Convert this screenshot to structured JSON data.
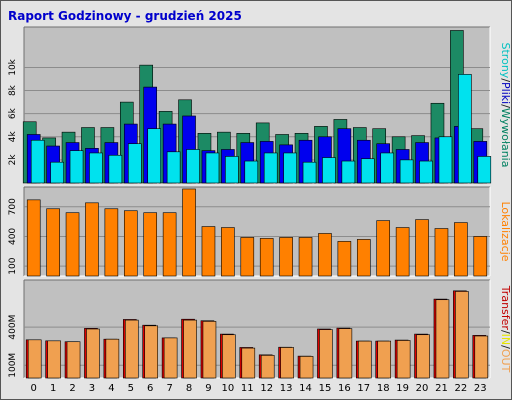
{
  "chart_data": {
    "type": "bar",
    "title": "Raport Godzinowy -  grudzień 2025",
    "categories": [
      "0",
      "1",
      "2",
      "3",
      "4",
      "5",
      "6",
      "7",
      "8",
      "9",
      "10",
      "11",
      "12",
      "13",
      "14",
      "15",
      "16",
      "17",
      "18",
      "19",
      "20",
      "21",
      "22",
      "23"
    ],
    "panels": [
      {
        "id": "top",
        "ylim": [
          0,
          13500
        ],
        "yticks": [
          {
            "value": 2000,
            "label": "2k"
          },
          {
            "value": 4000,
            "label": "4k"
          },
          {
            "value": 6000,
            "label": "6k"
          },
          {
            "value": 8000,
            "label": "8k"
          },
          {
            "value": 10000,
            "label": "10k"
          }
        ],
        "side_label": [
          {
            "text": "Strony",
            "color": "#00c0c0"
          },
          {
            "text": "/",
            "color": "#202020"
          },
          {
            "text": "Pliki",
            "color": "#0000c0"
          },
          {
            "text": "/",
            "color": "#202020"
          },
          {
            "text": "Wywołania",
            "color": "#008060"
          }
        ],
        "series": [
          {
            "color": "#1c8a64",
            "values": [
              5300,
              3900,
              4400,
              4800,
              4800,
              7000,
              10200,
              6200,
              7200,
              4300,
              4400,
              4300,
              5200,
              4200,
              4300,
              4900,
              5500,
              4800,
              4700,
              4000,
              4100,
              6900,
              13200,
              4700
            ]
          },
          {
            "color": "#0000ee",
            "values": [
              4200,
              3200,
              3500,
              3000,
              3500,
              5100,
              8300,
              5100,
              5800,
              2800,
              2900,
              3500,
              3600,
              3300,
              3700,
              4000,
              4700,
              3700,
              3400,
              2900,
              3500,
              3900,
              4900,
              3600
            ]
          },
          {
            "color": "#00e2ee",
            "values": [
              3700,
              1800,
              2800,
              2600,
              2400,
              3400,
              4700,
              2700,
              2900,
              2600,
              2300,
              1900,
              2600,
              2600,
              1800,
              2200,
              1900,
              2100,
              2600,
              2000,
              1900,
              4000,
              9400,
              2300
            ]
          }
        ]
      },
      {
        "id": "mid",
        "ylim": [
          0,
          900
        ],
        "yticks": [
          {
            "value": 100,
            "label": "100"
          },
          {
            "value": 400,
            "label": "400"
          },
          {
            "value": 700,
            "label": "700"
          }
        ],
        "side_label": [
          {
            "text": "Lokalizacje",
            "color": "#ff8000"
          }
        ],
        "series": [
          {
            "color": "#ff8000",
            "values": [
              770,
              680,
              640,
              740,
              680,
              660,
              640,
              640,
              880,
              500,
              490,
              390,
              380,
              390,
              390,
              430,
              350,
              370,
              560,
              490,
              570,
              480,
              540,
              400
            ]
          }
        ]
      },
      {
        "id": "bot",
        "ylim": [
          0,
          770
        ],
        "yticks": [
          {
            "value": 100,
            "label": "100M"
          },
          {
            "value": 400,
            "label": "400M"
          }
        ],
        "side_label": [
          {
            "text": "Transfer",
            "color": "#c00000"
          },
          {
            "text": "/",
            "color": "#202020"
          },
          {
            "text": "IN",
            "color": "#e6e600"
          },
          {
            "text": "/",
            "color": "#202020"
          },
          {
            "text": "OUT",
            "color": "#f0a050"
          }
        ],
        "series": [
          {
            "color": "#dd0000",
            "values": [
              300,
              292,
              285,
              390,
              305,
              460,
              415,
              315,
              462,
              450,
              345,
              240,
              182,
              242,
              172,
              385,
              392,
              290,
              290,
              298,
              345,
              620,
              685,
              335
            ]
          },
          {
            "color": "#f0a050",
            "values": [
              300,
              292,
              285,
              385,
              305,
              455,
              410,
              315,
              455,
              445,
              340,
              235,
              178,
              240,
              170,
              380,
              388,
              290,
              290,
              295,
              340,
              615,
              680,
              330
            ]
          }
        ]
      }
    ],
    "colors": {
      "title": "#0000cc",
      "plot_background": "#c0c0c0",
      "axis_text": "#000000"
    }
  }
}
